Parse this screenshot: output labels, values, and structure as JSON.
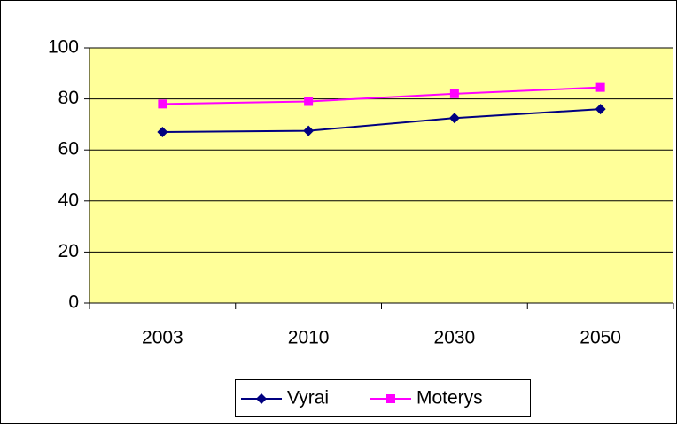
{
  "chart_data": {
    "type": "line",
    "categories": [
      "2003",
      "2010",
      "2030",
      "2050"
    ],
    "series": [
      {
        "name": "Vyrai",
        "color": "#000080",
        "marker": "diamond",
        "values": [
          67,
          67.5,
          72.5,
          76
        ]
      },
      {
        "name": "Moterys",
        "color": "#ff00ff",
        "marker": "square",
        "values": [
          78,
          79,
          82,
          84.5
        ]
      }
    ],
    "ylim": [
      0,
      100
    ],
    "yticks": [
      0,
      20,
      40,
      60,
      80,
      100
    ],
    "grid": true,
    "plot_background": "#ffff99",
    "legend": "bottom"
  }
}
